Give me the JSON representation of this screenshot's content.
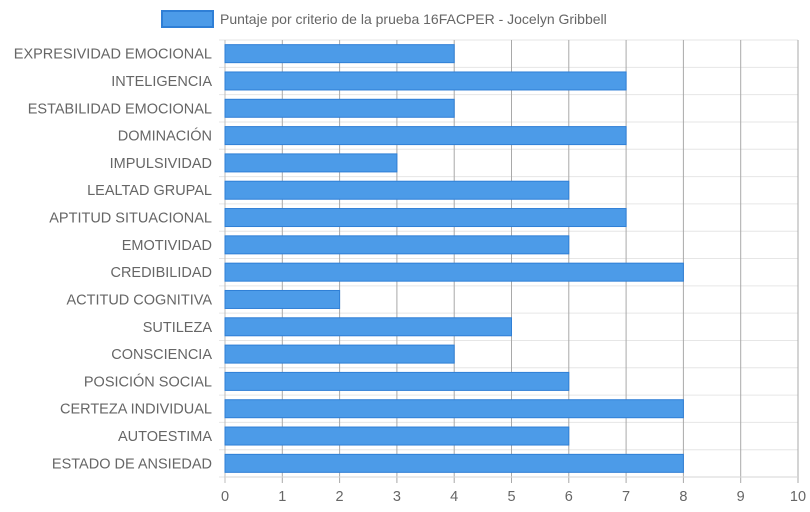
{
  "chart_data": {
    "type": "bar",
    "orientation": "horizontal",
    "categories": [
      "EXPRESIVIDAD EMOCIONAL",
      "INTELIGENCIA",
      "ESTABILIDAD EMOCIONAL",
      "DOMINACIÓN",
      "IMPULSIVIDAD",
      "LEALTAD GRUPAL",
      "APTITUD SITUACIONAL",
      "EMOTIVIDAD",
      "CREDIBILIDAD",
      "ACTITUD COGNITIVA",
      "SUTILEZA",
      "CONSCIENCIA",
      "POSICIÓN SOCIAL",
      "CERTEZA INDIVIDUAL",
      "AUTOESTIMA",
      "ESTADO DE ANSIEDAD"
    ],
    "series": [
      {
        "name": "Puntaje por criterio de la prueba 16FACPER - Jocelyn Gribbell",
        "values": [
          4,
          7,
          4,
          7,
          3,
          6,
          7,
          6,
          8,
          2,
          5,
          4,
          6,
          8,
          6,
          8
        ],
        "color": "#4c9be8",
        "border_color": "#2f7fd6"
      }
    ],
    "xlim": [
      0,
      10
    ],
    "x_ticks": [
      0,
      1,
      2,
      3,
      4,
      5,
      6,
      7,
      8,
      9,
      10
    ],
    "grid": true,
    "legend_position": "top"
  }
}
